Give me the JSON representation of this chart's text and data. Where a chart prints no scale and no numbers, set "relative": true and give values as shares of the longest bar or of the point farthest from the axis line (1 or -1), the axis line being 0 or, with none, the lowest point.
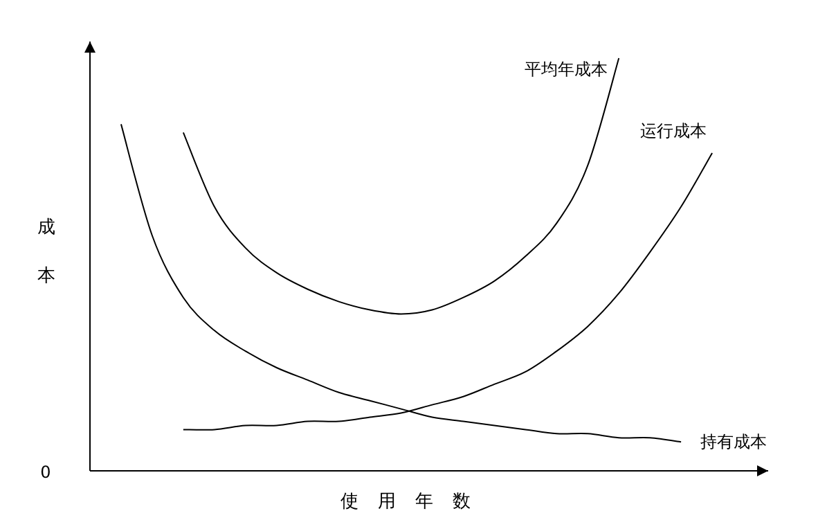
{
  "chart_data": {
    "type": "line",
    "relative": true,
    "categories": [
      null,
      null,
      null,
      null,
      null,
      null,
      null,
      null,
      null,
      null,
      null,
      null,
      null,
      null,
      null,
      null,
      null,
      null,
      null,
      null
    ],
    "series": [
      {
        "name": "平均年成本",
        "color": "#000000",
        "values": [
          null,
          null,
          0.82,
          0.64,
          0.54,
          0.48,
          0.44,
          0.41,
          0.39,
          0.38,
          0.39,
          0.42,
          0.46,
          0.52,
          0.6,
          0.74,
          1,
          null,
          null,
          null
        ]
      },
      {
        "name": "运行成本",
        "color": "#000000",
        "values": [
          null,
          null,
          0.1,
          0.1,
          0.11,
          0.11,
          0.12,
          0.12,
          0.13,
          0.14,
          0.16,
          0.18,
          0.21,
          0.24,
          0.29,
          0.35,
          0.43,
          0.53,
          0.64,
          0.77
        ]
      },
      {
        "name": "持有成本",
        "color": "#000000",
        "values": [
          0.84,
          0.57,
          0.42,
          0.34,
          0.29,
          0.25,
          0.22,
          0.19,
          0.17,
          0.15,
          0.13,
          0.12,
          0.11,
          0.1,
          0.09,
          0.09,
          0.08,
          0.08,
          0.07,
          null
        ]
      }
    ],
    "xlabel": "使用年数",
    "ylabel": "成本",
    "annotations": [
      "0"
    ]
  }
}
